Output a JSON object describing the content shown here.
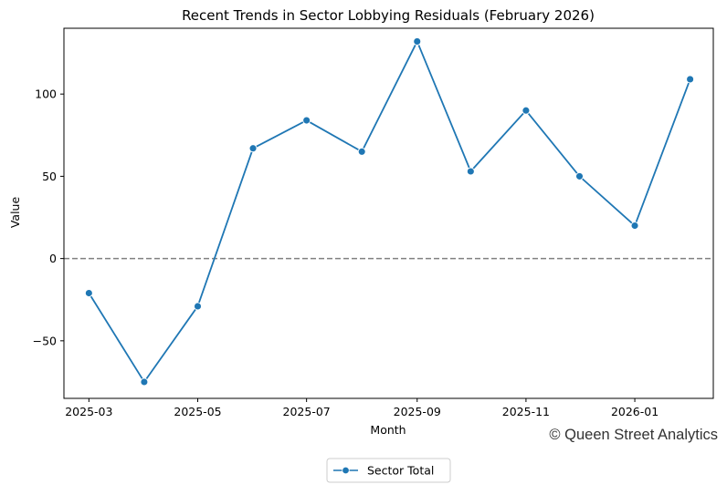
{
  "chart_data": {
    "type": "line",
    "title": "Recent Trends in Sector Lobbying Residuals (February 2026)",
    "xlabel": "Month",
    "ylabel": "Value",
    "x": [
      "2025-03",
      "2025-04",
      "2025-05",
      "2025-06",
      "2025-07",
      "2025-08",
      "2025-09",
      "2025-10",
      "2025-11",
      "2025-12",
      "2026-01",
      "2026-02"
    ],
    "series": [
      {
        "name": "Sector Total",
        "values": [
          -21,
          -75,
          -29,
          67,
          84,
          65,
          132,
          53,
          90,
          50,
          20,
          109
        ],
        "color": "#1f77b4",
        "marker": "circle"
      }
    ],
    "x_ticks": [
      "2025-03",
      "2025-05",
      "2025-07",
      "2025-09",
      "2025-11",
      "2026-01"
    ],
    "y_ticks": [
      -50,
      0,
      50,
      100
    ],
    "y_tick_labels": [
      "−50",
      "0",
      "50",
      "100"
    ],
    "ylim": [
      -85,
      140
    ],
    "xlim": [
      "2025-02-15",
      "2026-02-14"
    ],
    "reference_line": {
      "value": 0,
      "style": "dashed",
      "color": "#808080"
    },
    "grid": false,
    "legend": {
      "position": "bottom-center, outside plot"
    },
    "watermark": "© Queen Street Analytics"
  }
}
